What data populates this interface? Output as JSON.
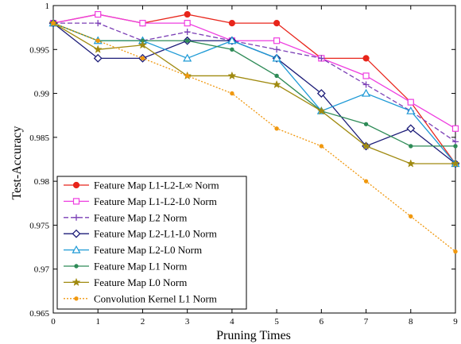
{
  "chart_data": {
    "type": "line",
    "title": "",
    "xlabel": "Pruning Times",
    "ylabel": "Test-Accuracy",
    "x": [
      0,
      1,
      2,
      3,
      4,
      5,
      6,
      7,
      8,
      9
    ],
    "xlim": [
      0,
      9
    ],
    "ylim": [
      0.965,
      1.0
    ],
    "xticks": [
      "0",
      "1",
      "2",
      "3",
      "4",
      "5",
      "6",
      "7",
      "8",
      "9"
    ],
    "yticks": [
      {
        "value": 0.965,
        "label": "0.965"
      },
      {
        "value": 0.97,
        "label": "0.97"
      },
      {
        "value": 0.975,
        "label": "0.975"
      },
      {
        "value": 0.98,
        "label": "0.98"
      },
      {
        "value": 0.985,
        "label": "0.985"
      },
      {
        "value": 0.99,
        "label": "0.99"
      },
      {
        "value": 0.995,
        "label": "0.995"
      },
      {
        "value": 1.0,
        "label": "1"
      }
    ],
    "grid": false,
    "legend_position": "bottom-left",
    "series": [
      {
        "name": "Feature Map L1-L2-L∞ Norm",
        "color": "#e8251b",
        "marker": "circle",
        "dash": "solid",
        "values": [
          0.998,
          0.999,
          0.998,
          0.999,
          0.998,
          0.998,
          0.994,
          0.994,
          0.989,
          0.982
        ]
      },
      {
        "name": "Feature Map L1-L2-L0 Norm",
        "color": "#ee3ee0",
        "marker": "square",
        "dash": "solid",
        "values": [
          0.998,
          0.999,
          0.998,
          0.998,
          0.996,
          0.996,
          0.994,
          0.992,
          0.989,
          0.986
        ]
      },
      {
        "name": "Feature Map L2 Norm",
        "color": "#7b3fb6",
        "marker": "plus",
        "dash": "dashed",
        "values": [
          0.998,
          0.998,
          0.996,
          0.997,
          0.996,
          0.995,
          0.994,
          0.991,
          0.988,
          0.9845
        ]
      },
      {
        "name": "Feature Map L2-L1-L0 Norm",
        "color": "#1c1c78",
        "marker": "diamond",
        "dash": "solid",
        "values": [
          0.998,
          0.994,
          0.994,
          0.996,
          0.996,
          0.994,
          0.99,
          0.984,
          0.986,
          0.982
        ]
      },
      {
        "name": "Feature Map L2-L0 Norm",
        "color": "#1e9ad6",
        "marker": "triangle",
        "dash": "solid",
        "values": [
          0.998,
          0.996,
          0.996,
          0.994,
          0.996,
          0.994,
          0.988,
          0.99,
          0.988,
          0.982
        ]
      },
      {
        "name": "Feature Map L1 Norm",
        "color": "#2e8b57",
        "marker": "dot",
        "dash": "solid",
        "values": [
          0.998,
          0.996,
          0.996,
          0.996,
          0.995,
          0.992,
          0.988,
          0.9865,
          0.984,
          0.984
        ]
      },
      {
        "name": "Feature Map L0 Norm",
        "color": "#a08a10",
        "marker": "star",
        "dash": "solid",
        "values": [
          0.998,
          0.995,
          0.9955,
          0.992,
          0.992,
          0.991,
          0.988,
          0.984,
          0.982,
          0.982
        ]
      },
      {
        "name": "Convolution Kernel L1 Norm",
        "color": "#f0980f",
        "marker": "dot",
        "dash": "dotted",
        "values": [
          0.998,
          0.996,
          0.994,
          0.992,
          0.99,
          0.986,
          0.984,
          0.98,
          0.976,
          0.972
        ]
      }
    ]
  }
}
